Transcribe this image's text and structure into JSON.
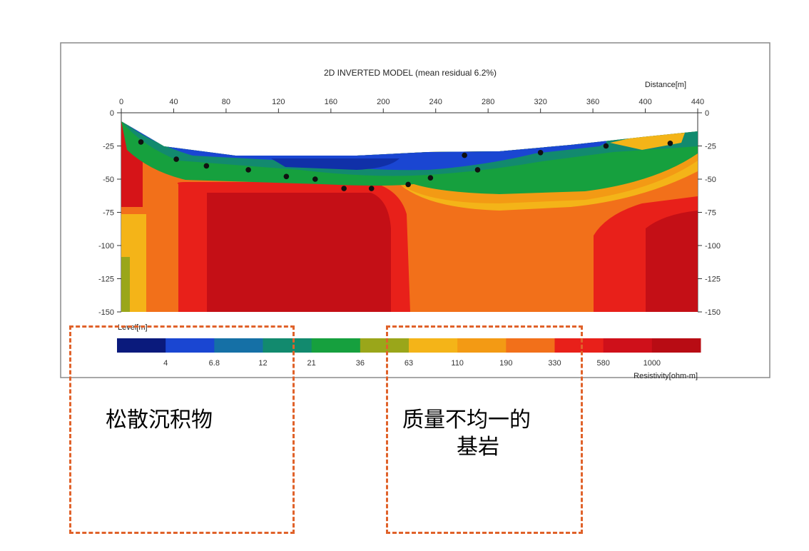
{
  "title": "2D INVERTED MODEL (mean residual 6.2%)",
  "distance_label": "Distance[m]",
  "elevation_label": "Level[m]",
  "resistivity_label": "Resistivity[ohm-m]",
  "x_ticks": [
    "0",
    "40",
    "80",
    "120",
    "160",
    "200",
    "240",
    "280",
    "320",
    "360",
    "400",
    "440"
  ],
  "x_tick_values": [
    0,
    40,
    80,
    120,
    160,
    200,
    240,
    280,
    320,
    360,
    400,
    440
  ],
  "y_ticks": [
    "0",
    "-25",
    "-50",
    "-75",
    "-100",
    "-125",
    "-150"
  ],
  "y_tick_values": [
    0,
    -25,
    -50,
    -75,
    -100,
    -125,
    -150
  ],
  "colorbar": {
    "colors": [
      "#0a1a7c",
      "#1a46d2",
      "#1570a6",
      "#128a6e",
      "#16a03e",
      "#9aa61a",
      "#f4b418",
      "#f39a14",
      "#f2701a",
      "#e8201a",
      "#cf101a",
      "#b80c14"
    ],
    "labels": [
      "4",
      "6.8",
      "12",
      "21",
      "36",
      "63",
      "110",
      "190",
      "330",
      "580",
      "1000"
    ]
  },
  "electrodes": [
    [
      15,
      -22
    ],
    [
      42,
      -35
    ],
    [
      65,
      -40
    ],
    [
      97,
      -43
    ],
    [
      126,
      -48
    ],
    [
      148,
      -50
    ],
    [
      170,
      -57
    ],
    [
      191,
      -57
    ],
    [
      219,
      -54
    ],
    [
      236,
      -49
    ],
    [
      262,
      -32
    ],
    [
      272,
      -43
    ],
    [
      320,
      -30
    ],
    [
      370,
      -25
    ],
    [
      419,
      -23
    ]
  ],
  "annotations": {
    "left": "松散沉积物",
    "right_line1": "质量不均一的",
    "right_line2": "基岩"
  }
}
